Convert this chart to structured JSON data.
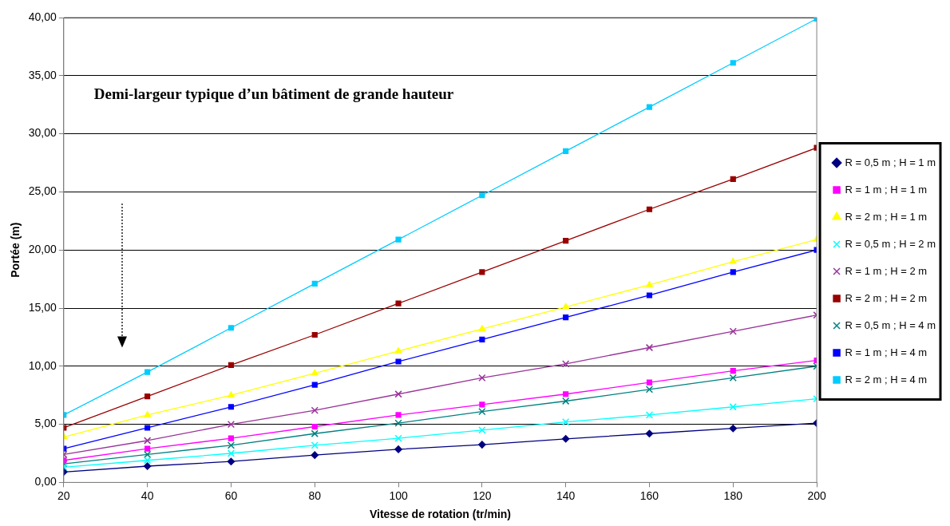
{
  "chart_data": {
    "type": "line",
    "xlabel": "Vitesse de rotation (tr/min)",
    "ylabel": "Portée (m)",
    "x": [
      20,
      40,
      60,
      80,
      100,
      120,
      140,
      160,
      180,
      200
    ],
    "xlim": [
      20,
      200
    ],
    "xticks": [
      20,
      40,
      60,
      80,
      100,
      120,
      140,
      160,
      180,
      200
    ],
    "ylim": [
      0,
      40
    ],
    "yticks": [
      {
        "value": 0,
        "label": "0,00"
      },
      {
        "value": 5,
        "label": "5,00"
      },
      {
        "value": 10,
        "label": "10,00"
      },
      {
        "value": 15,
        "label": "15,00"
      },
      {
        "value": 20,
        "label": "20,00"
      },
      {
        "value": 25,
        "label": "25,00"
      },
      {
        "value": 30,
        "label": "30,00"
      },
      {
        "value": 35,
        "label": "35,00"
      },
      {
        "value": 40,
        "label": "40,00"
      }
    ],
    "grid": "y",
    "legend": "right",
    "line_style": "solid",
    "annotations": [
      "Demi-largeur typique d’un bâtiment de grande hauteur"
    ],
    "series": [
      {
        "name": "R = 0,5 m ; H = 1 m",
        "color": "#000080",
        "marker": "diamond",
        "values": [
          0.9,
          1.4,
          1.8,
          2.35,
          2.85,
          3.25,
          3.75,
          4.2,
          4.65,
          5.1
        ]
      },
      {
        "name": "R = 1 m ; H = 1 m",
        "color": "#ff00ff",
        "marker": "square",
        "values": [
          1.9,
          2.9,
          3.8,
          4.8,
          5.8,
          6.7,
          7.6,
          8.6,
          9.6,
          10.5
        ]
      },
      {
        "name": "R = 2 m ; H = 1 m",
        "color": "#ffff00",
        "marker": "triangle",
        "values": [
          3.9,
          5.8,
          7.5,
          9.4,
          11.3,
          13.2,
          15.1,
          17.0,
          19.0,
          20.9
        ]
      },
      {
        "name": "R = 0,5 m ; H = 2 m",
        "color": "#00ffff",
        "marker": "cross",
        "values": [
          1.3,
          1.9,
          2.5,
          3.2,
          3.8,
          4.5,
          5.2,
          5.8,
          6.5,
          7.2
        ]
      },
      {
        "name": "R = 1 m ; H = 2 m",
        "color": "#993399",
        "marker": "cross",
        "values": [
          2.4,
          3.6,
          5.0,
          6.2,
          7.6,
          9.0,
          10.2,
          11.6,
          13.0,
          14.4
        ]
      },
      {
        "name": "R = 2 m ; H = 2 m",
        "color": "#990000",
        "marker": "square",
        "values": [
          4.7,
          7.4,
          10.1,
          12.7,
          15.4,
          18.1,
          20.8,
          23.5,
          26.1,
          28.8
        ]
      },
      {
        "name": "R = 0,5 m ; H = 4 m",
        "color": "#008080",
        "marker": "cross",
        "values": [
          1.6,
          2.4,
          3.2,
          4.2,
          5.1,
          6.1,
          7.0,
          8.0,
          9.0,
          10.0
        ]
      },
      {
        "name": "R = 1 m ; H = 4 m",
        "color": "#0000ff",
        "marker": "square",
        "values": [
          2.9,
          4.7,
          6.5,
          8.4,
          10.4,
          12.3,
          14.2,
          16.1,
          18.1,
          20.0
        ]
      },
      {
        "name": "R = 2 m ; H = 4 m",
        "color": "#00ccff",
        "marker": "square",
        "values": [
          5.8,
          9.5,
          13.3,
          17.1,
          20.9,
          24.7,
          28.5,
          32.3,
          36.1,
          39.9
        ]
      }
    ]
  }
}
